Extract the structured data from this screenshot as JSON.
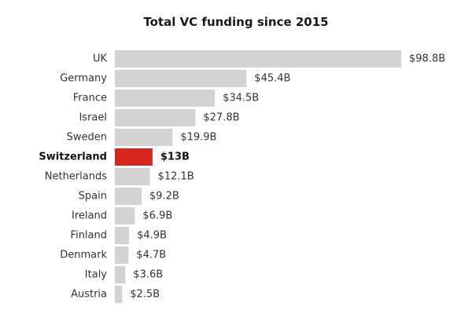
{
  "chart_data": {
    "type": "bar",
    "orientation": "horizontal",
    "title": "Total VC funding since 2015",
    "categories": [
      "UK",
      "Germany",
      "France",
      "Israel",
      "Sweden",
      "Switzerland",
      "Netherlands",
      "Spain",
      "Ireland",
      "Finland",
      "Denmark",
      "Italy",
      "Austria"
    ],
    "values": [
      98.8,
      45.4,
      34.5,
      27.8,
      19.9,
      13,
      12.1,
      9.2,
      6.9,
      4.9,
      4.7,
      3.6,
      2.5
    ],
    "value_labels": [
      "$98.8B",
      "$45.4B",
      "$34.5B",
      "$27.8B",
      "$19.9B",
      "$13B",
      "$12.1B",
      "$9.2B",
      "$6.9B",
      "$4.9B",
      "$4.7B",
      "$3.6B",
      "$2.5B"
    ],
    "unit": "USD billions",
    "xlim": [
      0,
      98.8
    ],
    "grid": false,
    "legend": "none",
    "highlight": "Switzerland",
    "colors": {
      "bar": "#d3d3d3",
      "highlight_bar": "#d7261e"
    }
  }
}
